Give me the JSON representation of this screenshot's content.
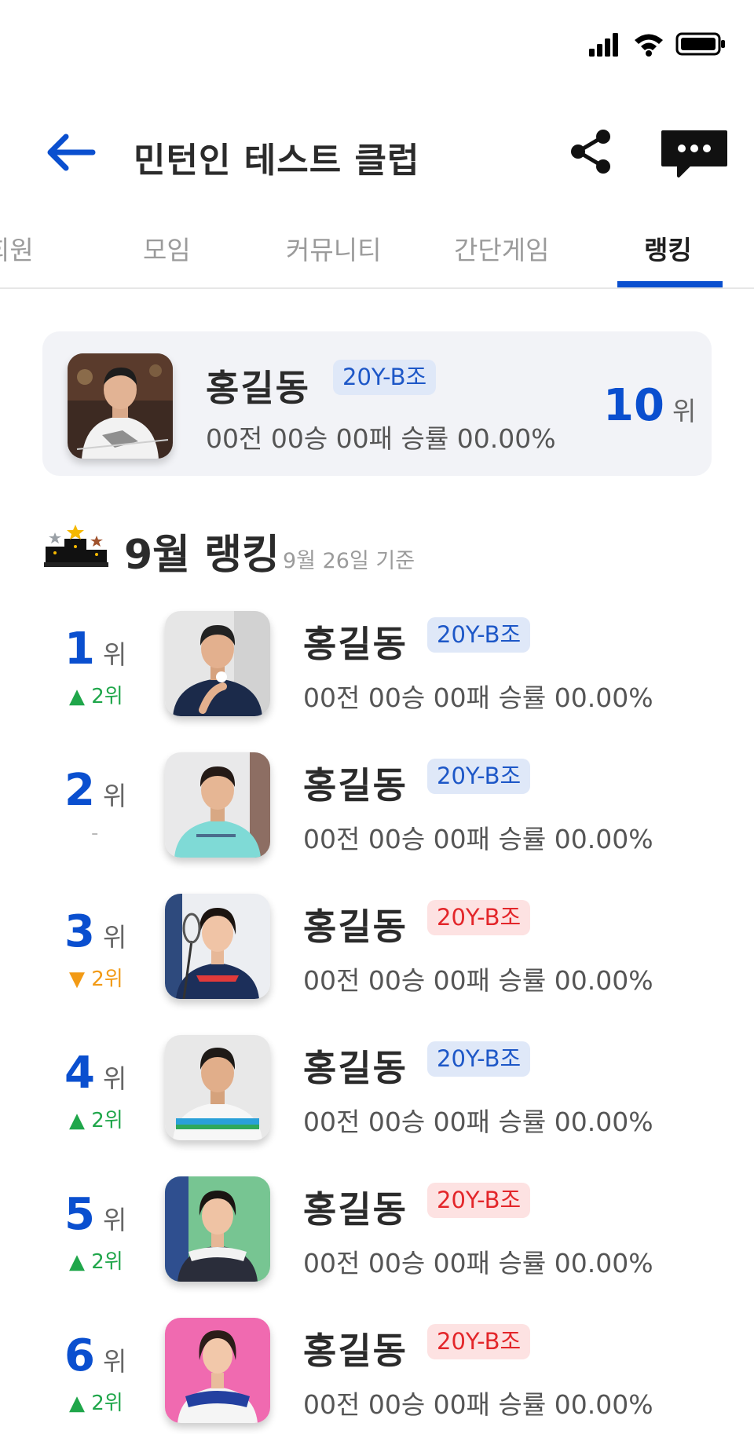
{
  "header": {
    "title": "민턴인 테스트 클럽"
  },
  "tabs": [
    {
      "label": "회원"
    },
    {
      "label": "모임"
    },
    {
      "label": "커뮤니티"
    },
    {
      "label": "간단게임"
    },
    {
      "label": "랭킹"
    }
  ],
  "my": {
    "name": "홍길동",
    "badge": "20Y-B조",
    "stats": "00전 00승 00패  승률 00.00%",
    "rank": "10",
    "rank_unit": "위"
  },
  "ranking": {
    "title": "9월 랭킹",
    "date": "9월 26일 기준",
    "rank_unit": "위",
    "rows": [
      {
        "rank": "1",
        "change": "▲ 2위",
        "change_type": "up",
        "name": "홍길동",
        "badge": "20Y-B조",
        "badge_color": "blue",
        "stats": "00전 00승 00패  승률 00.00%"
      },
      {
        "rank": "2",
        "change": "-",
        "change_type": "same",
        "name": "홍길동",
        "badge": "20Y-B조",
        "badge_color": "blue",
        "stats": "00전 00승 00패  승률 00.00%"
      },
      {
        "rank": "3",
        "change": "▼ 2위",
        "change_type": "down",
        "name": "홍길동",
        "badge": "20Y-B조",
        "badge_color": "red",
        "stats": "00전 00승 00패  승률 00.00%"
      },
      {
        "rank": "4",
        "change": "▲ 2위",
        "change_type": "up",
        "name": "홍길동",
        "badge": "20Y-B조",
        "badge_color": "blue",
        "stats": "00전 00승 00패  승률 00.00%"
      },
      {
        "rank": "5",
        "change": "▲ 2위",
        "change_type": "up",
        "name": "홍길동",
        "badge": "20Y-B조",
        "badge_color": "red",
        "stats": "00전 00승 00패  승률 00.00%"
      },
      {
        "rank": "6",
        "change": "▲ 2위",
        "change_type": "up",
        "name": "홍길동",
        "badge": "20Y-B조",
        "badge_color": "red",
        "stats": "00전 00승 00패  승률 00.00%"
      }
    ]
  },
  "colors": {
    "accent": "#0a4fcf",
    "up": "#1fa64a",
    "down": "#f29a15",
    "badge_blue_bg": "#dfe8f8",
    "badge_red_bg": "#fde2e2"
  },
  "icons": [
    "signal-icon",
    "wifi-icon",
    "battery-icon",
    "back-arrow-icon",
    "share-icon",
    "chat-icon",
    "podium-icon"
  ]
}
